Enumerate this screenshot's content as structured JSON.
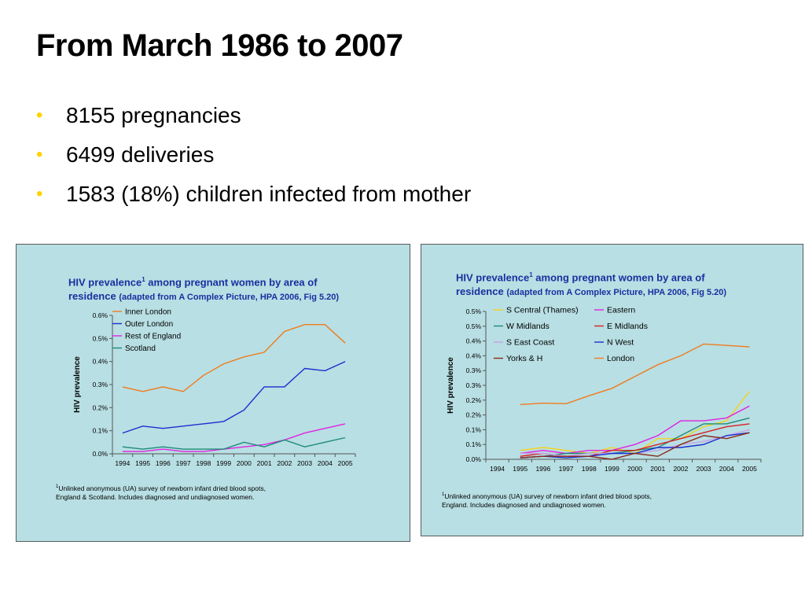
{
  "slide": {
    "title": "From March 1986 to 2007",
    "bullets": [
      "8155 pregnancies",
      "6499 deliveries",
      "1583 (18%) children infected from mother"
    ]
  },
  "bullet_color": "#ffd200",
  "panel_color": "#b8dfe3",
  "title_color": "#1a2fa0",
  "left_panel": {
    "title_main": "HIV prevalence",
    "title_sup": "1",
    "title_rest_line1": " among pregnant women by area of",
    "title_line2_main": "residence",
    "title_line2_sub": "(adapted from A Complex Picture, HPA 2006, Fig 5.20)",
    "footnote_sup": "1",
    "footnote_line1": "Unlinked anonymous (UA) survey of newborn infant dried blood spots,",
    "footnote_line2": "England & Scotland. Includes diagnosed and undiagnosed women."
  },
  "right_panel": {
    "title_main": "HIV prevalence",
    "title_sup": "1",
    "title_rest_line1": " among pregnant women by area of",
    "title_line2_main": "residence",
    "title_line2_sub": "(adapted from A Complex Picture, HPA 2006, Fig 5.20)",
    "footnote_sup": "1",
    "footnote_line1": "Unlinked anonymous (UA) survey of newborn infant dried blood spots,",
    "footnote_line2": "England. Includes diagnosed and undiagnosed women."
  },
  "chart_data": [
    {
      "type": "line",
      "ylabel": "HIV prevalence",
      "x": [
        "1994",
        "1995",
        "1996",
        "1997",
        "1998",
        "1999",
        "2000",
        "2001",
        "2002",
        "2003",
        "2004",
        "2005"
      ],
      "ylim": [
        0,
        0.6
      ],
      "yticks": [
        "0.0%",
        "0.1%",
        "0.2%",
        "0.3%",
        "0.4%",
        "0.5%",
        "0.6%"
      ],
      "legend_position": "top-left",
      "series": [
        {
          "name": "Inner London",
          "color": "#f07b1e",
          "values": [
            0.29,
            0.27,
            0.29,
            0.27,
            0.34,
            0.39,
            0.42,
            0.44,
            0.53,
            0.56,
            0.56,
            0.48
          ]
        },
        {
          "name": "Outer London",
          "color": "#1a2fd0",
          "values": [
            0.09,
            0.12,
            0.11,
            0.12,
            0.13,
            0.14,
            0.19,
            0.29,
            0.29,
            0.37,
            0.36,
            0.4
          ]
        },
        {
          "name": "Rest of England",
          "color": "#e023e0",
          "values": [
            0.01,
            0.01,
            0.02,
            0.01,
            0.01,
            0.02,
            0.03,
            0.04,
            0.06,
            0.09,
            0.11,
            0.13
          ]
        },
        {
          "name": "Scotland",
          "color": "#1e8a7a",
          "values": [
            0.03,
            0.02,
            0.03,
            0.02,
            0.02,
            0.02,
            0.05,
            0.03,
            0.06,
            0.03,
            0.05,
            0.07
          ]
        }
      ]
    },
    {
      "type": "line",
      "ylabel": "HIV prevalence",
      "x": [
        "1994",
        "1995",
        "1996",
        "1997",
        "1998",
        "1999",
        "2000",
        "2001",
        "2002",
        "2003",
        "2004",
        "2005"
      ],
      "ylim": [
        0,
        0.5
      ],
      "yticks": [
        "0.0%",
        "0.1%",
        "0.1%",
        "0.2%",
        "0.2%",
        "0.3%",
        "0.3%",
        "0.4%",
        "0.4%",
        "0.5%",
        "0.5%"
      ],
      "legend_position": "top",
      "series": [
        {
          "name": "S Central (Thames)",
          "color": "#f5d31a",
          "values": [
            null,
            0.03,
            0.04,
            0.03,
            0.02,
            0.04,
            0.02,
            0.07,
            0.07,
            0.11,
            0.13,
            0.23
          ]
        },
        {
          "name": "Eastern",
          "color": "#e023e0",
          "values": [
            null,
            0.02,
            0.03,
            0.02,
            0.03,
            0.03,
            0.05,
            0.08,
            0.13,
            0.13,
            0.14,
            0.18
          ]
        },
        {
          "name": "W Midlands",
          "color": "#1e8a7a",
          "values": [
            null,
            0.005,
            0.01,
            0.02,
            0.02,
            0.02,
            0.03,
            0.04,
            0.08,
            0.12,
            0.12,
            0.14
          ]
        },
        {
          "name": "E Midlands",
          "color": "#d82020",
          "values": [
            null,
            0.01,
            0.02,
            0.01,
            0.01,
            0.03,
            0.03,
            0.05,
            0.07,
            0.09,
            0.11,
            0.12
          ]
        },
        {
          "name": "S East Coast",
          "color": "#c8a0e8",
          "values": [
            null,
            0.02,
            0.02,
            0.01,
            0.02,
            0.02,
            0.02,
            0.03,
            0.05,
            0.06,
            0.08,
            0.1
          ]
        },
        {
          "name": "N West",
          "color": "#1a2fd0",
          "values": [
            null,
            0.005,
            0.01,
            0.005,
            0.01,
            0.02,
            0.02,
            0.04,
            0.04,
            0.05,
            0.08,
            0.09
          ]
        },
        {
          "name": "Yorks & H",
          "color": "#8b2a1a",
          "values": [
            null,
            0.005,
            0.01,
            0.01,
            0.01,
            0.0,
            0.02,
            0.01,
            0.05,
            0.08,
            0.07,
            0.09
          ]
        },
        {
          "name": "London",
          "color": "#f07b1e",
          "values": [
            null,
            0.185,
            0.19,
            0.188,
            0.215,
            0.24,
            0.28,
            0.32,
            0.35,
            0.39,
            0.385,
            0.38
          ]
        }
      ]
    }
  ]
}
